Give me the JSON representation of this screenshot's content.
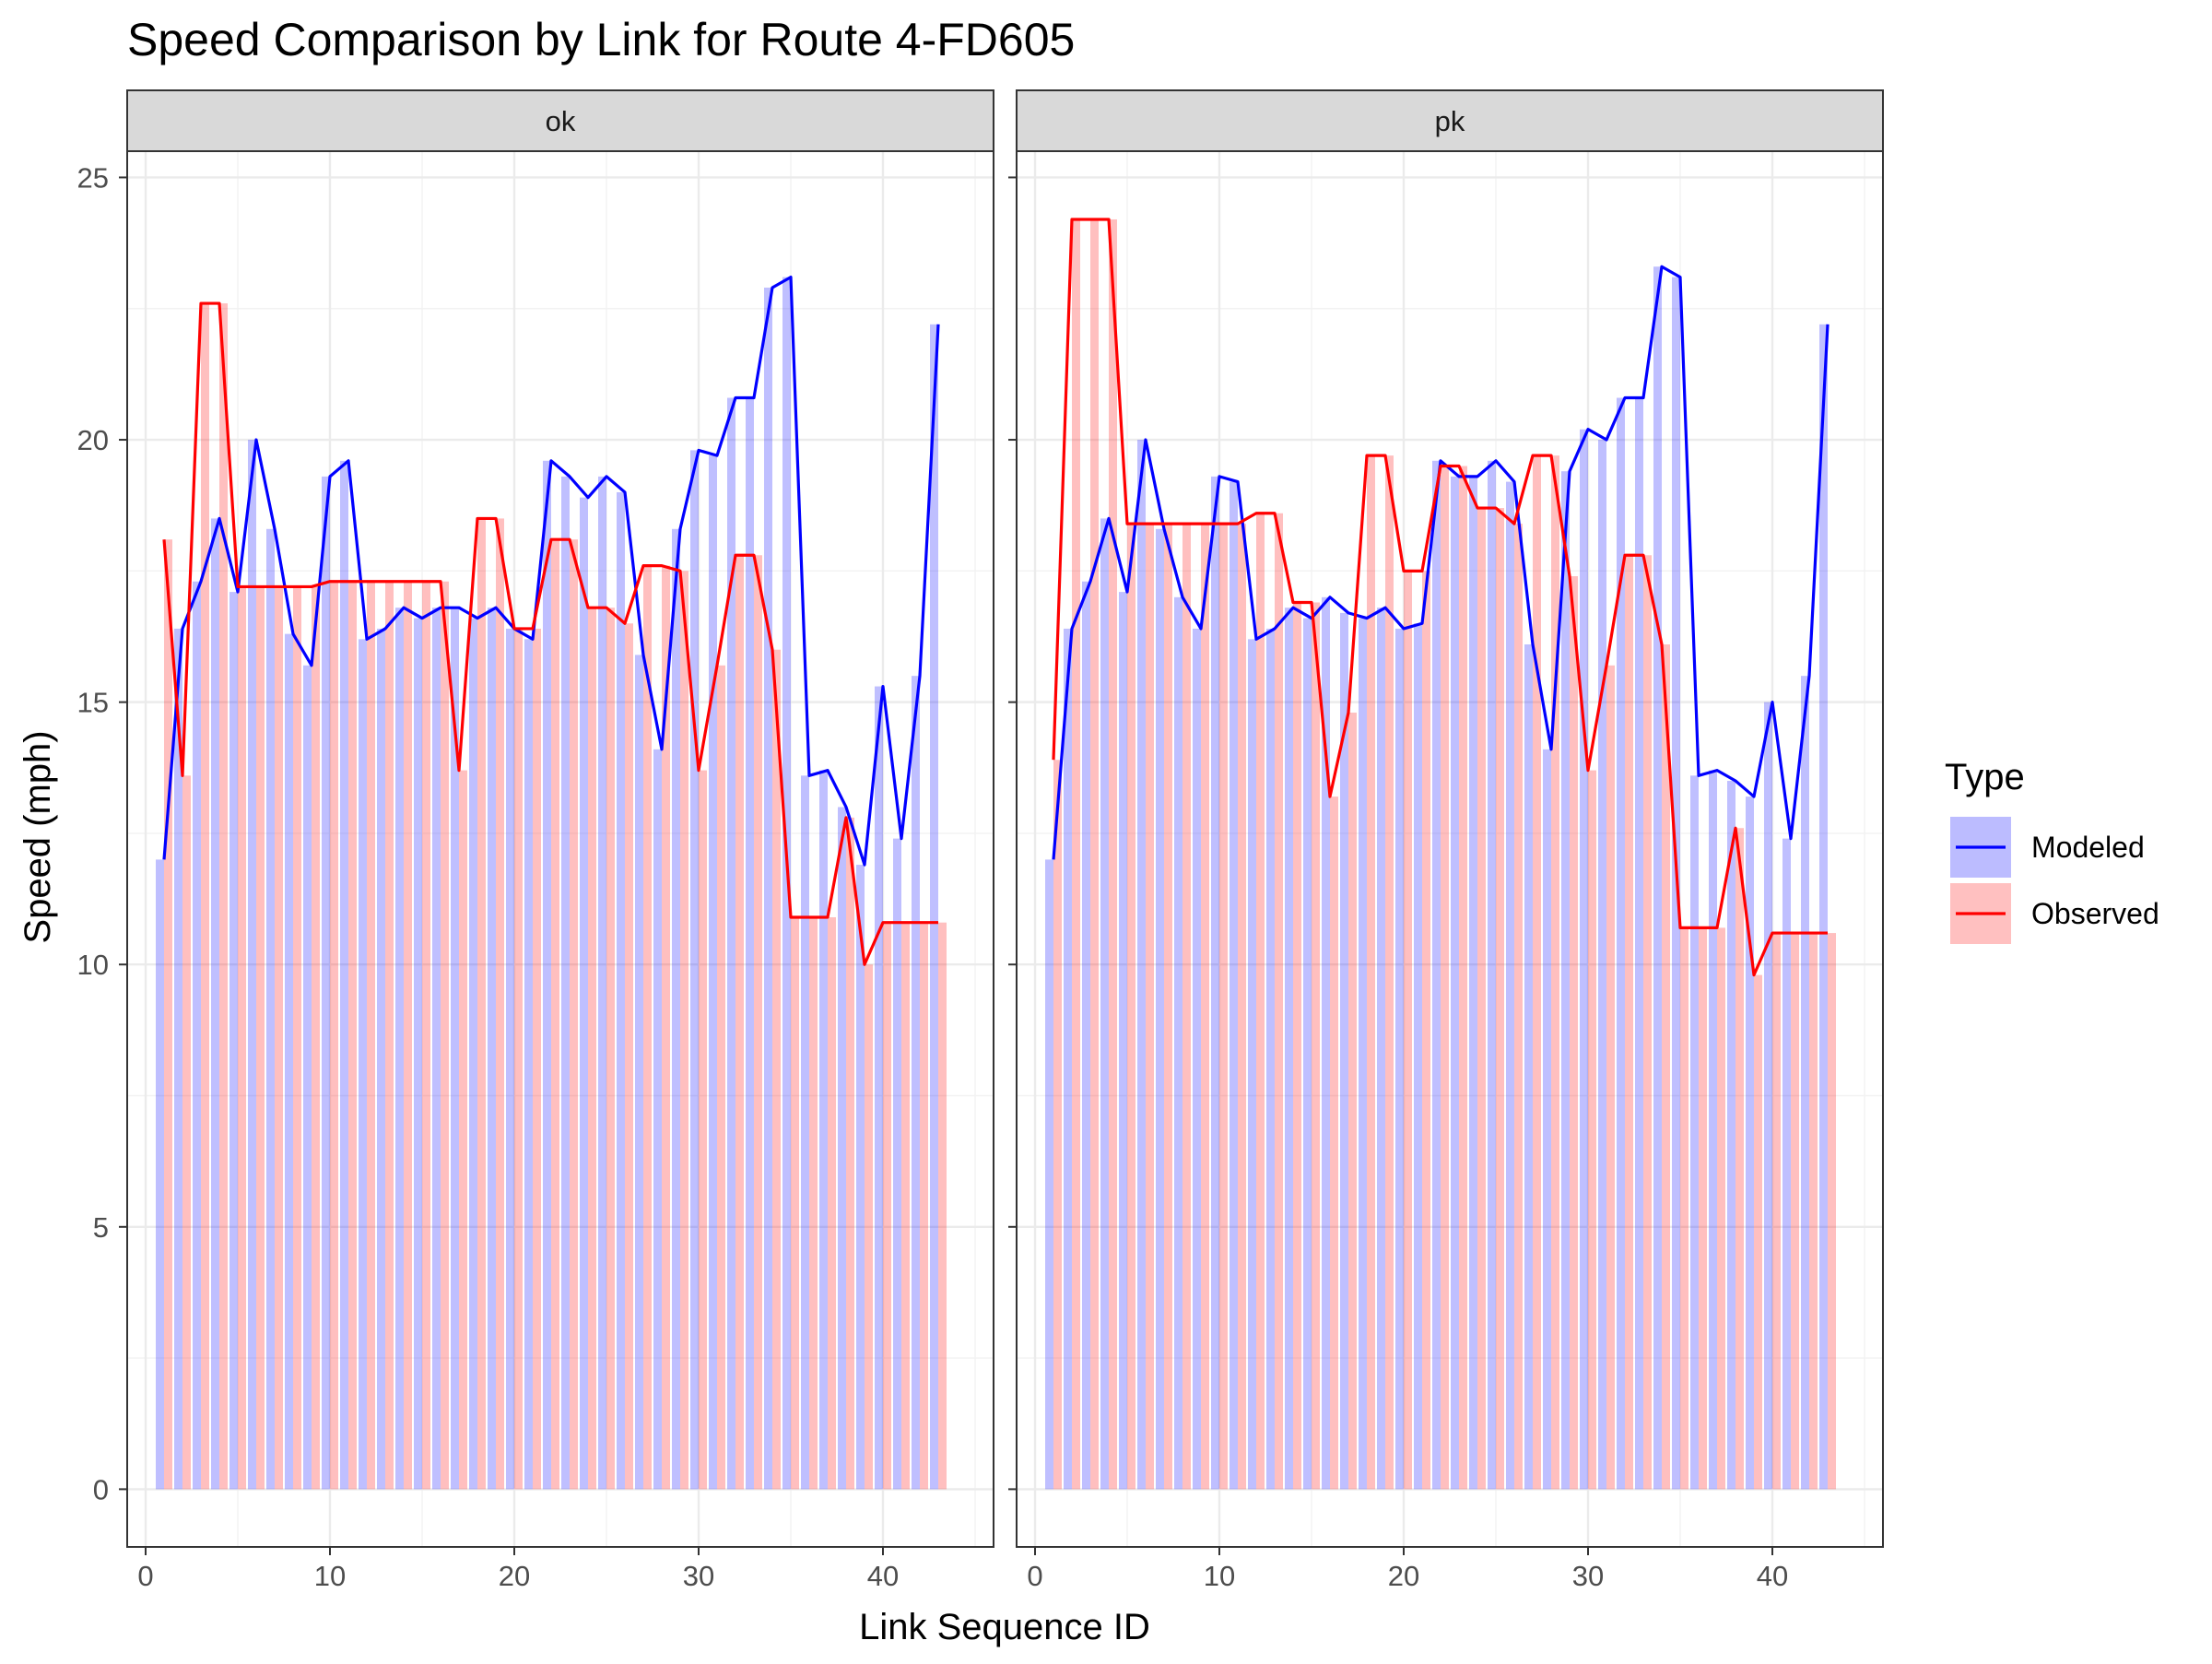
{
  "chart_data": {
    "type": "bar",
    "title": "Speed Comparison by Link for Route 4-FD605",
    "xlabel": "Link Sequence ID",
    "ylabel": "Speed (mph)",
    "xlim": [
      -1,
      46
    ],
    "ylim": [
      -1.1,
      25.5
    ],
    "x_ticks": [
      0,
      10,
      20,
      30,
      40
    ],
    "y_ticks": [
      0,
      5,
      10,
      15,
      20,
      25
    ],
    "grid": true,
    "legend": {
      "title": "Type",
      "position": "right",
      "entries": [
        {
          "label": "Modeled",
          "line_color": "#0000ff",
          "fill_color": "#bcbcff"
        },
        {
          "label": "Observed",
          "line_color": "#ff0000",
          "fill_color": "#ffc0c0"
        }
      ]
    },
    "facets": [
      {
        "label": "ok",
        "x": [
          1,
          2,
          3,
          4,
          5,
          6,
          7,
          8,
          9,
          10,
          11,
          12,
          13,
          14,
          15,
          16,
          17,
          18,
          19,
          20,
          21,
          22,
          23,
          24,
          25,
          26,
          27,
          28,
          29,
          30,
          31,
          32,
          33,
          34,
          35,
          36,
          37,
          38,
          39,
          40,
          41,
          42,
          43
        ],
        "series": [
          {
            "name": "Modeled",
            "values": [
              12.0,
              16.4,
              17.3,
              18.5,
              17.1,
              20.0,
              18.3,
              16.3,
              15.7,
              19.3,
              19.6,
              16.2,
              16.4,
              16.8,
              16.6,
              16.8,
              16.8,
              16.6,
              16.8,
              16.4,
              16.2,
              19.6,
              19.3,
              18.9,
              19.3,
              19.0,
              15.9,
              14.1,
              18.3,
              19.8,
              19.7,
              20.8,
              20.8,
              22.9,
              23.1,
              13.6,
              13.7,
              13.0,
              11.9,
              15.3,
              12.4,
              15.5,
              22.2
            ]
          },
          {
            "name": "Observed",
            "values": [
              18.1,
              13.6,
              22.6,
              22.6,
              17.2,
              17.2,
              17.2,
              17.2,
              17.2,
              17.3,
              17.3,
              17.3,
              17.3,
              17.3,
              17.3,
              17.3,
              13.7,
              18.5,
              18.5,
              16.4,
              16.4,
              18.1,
              18.1,
              16.8,
              16.8,
              16.5,
              17.6,
              17.6,
              17.5,
              13.7,
              15.7,
              17.8,
              17.8,
              16.0,
              10.9,
              10.9,
              10.9,
              12.8,
              10.0,
              10.8,
              10.8,
              10.8,
              10.8
            ]
          }
        ]
      },
      {
        "label": "pk",
        "x": [
          1,
          2,
          3,
          4,
          5,
          6,
          7,
          8,
          9,
          10,
          11,
          12,
          13,
          14,
          15,
          16,
          17,
          18,
          19,
          20,
          21,
          22,
          23,
          24,
          25,
          26,
          27,
          28,
          29,
          30,
          31,
          32,
          33,
          34,
          35,
          36,
          37,
          38,
          39,
          40,
          41,
          42,
          43
        ],
        "series": [
          {
            "name": "Modeled",
            "values": [
              12.0,
              16.4,
              17.3,
              18.5,
              17.1,
              20.0,
              18.3,
              17.0,
              16.4,
              19.3,
              19.2,
              16.2,
              16.4,
              16.8,
              16.6,
              17.0,
              16.7,
              16.6,
              16.8,
              16.4,
              16.5,
              19.6,
              19.3,
              19.3,
              19.6,
              19.2,
              16.1,
              14.1,
              19.4,
              20.2,
              20.0,
              20.8,
              20.8,
              23.3,
              23.1,
              13.6,
              13.7,
              13.5,
              13.2,
              15.0,
              12.4,
              15.5,
              22.2
            ]
          },
          {
            "name": "Observed",
            "values": [
              13.9,
              24.2,
              24.2,
              24.2,
              18.4,
              18.4,
              18.4,
              18.4,
              18.4,
              18.4,
              18.4,
              18.6,
              18.6,
              16.9,
              16.9,
              13.2,
              14.8,
              19.7,
              19.7,
              17.5,
              17.5,
              19.5,
              19.5,
              18.7,
              18.7,
              18.4,
              19.7,
              19.7,
              17.4,
              13.7,
              15.7,
              17.8,
              17.8,
              16.1,
              10.7,
              10.7,
              10.7,
              12.6,
              9.8,
              10.6,
              10.6,
              10.6,
              10.6
            ]
          }
        ]
      }
    ]
  }
}
